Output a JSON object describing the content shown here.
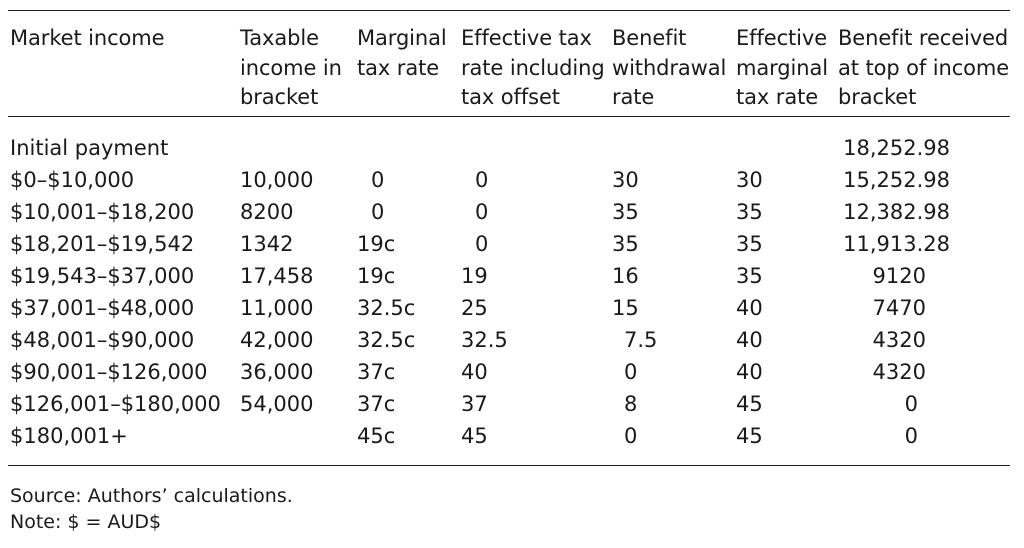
{
  "table": {
    "headers": [
      [
        "Market income"
      ],
      [
        "Taxable",
        "income in",
        "bracket"
      ],
      [
        "Marginal",
        "tax rate"
      ],
      [
        "Effective tax",
        "rate including",
        "tax offset"
      ],
      [
        "Benefit",
        "withdrawal",
        "rate"
      ],
      [
        "Effective",
        "marginal",
        "tax rate"
      ],
      [
        "Benefit received",
        "at top of income",
        "bracket"
      ]
    ],
    "rows": [
      [
        "Initial payment",
        "",
        "",
        "",
        "",
        "",
        "18,252.98"
      ],
      [
        "$0–$10,000",
        "10,000",
        "0",
        "0",
        "30",
        "30",
        "15,252.98"
      ],
      [
        "$10,001–$18,200",
        "8200",
        "0",
        "0",
        "35",
        "35",
        "12,382.98"
      ],
      [
        "$18,201–$19,542",
        "1342",
        "19c",
        "0",
        "35",
        "35",
        "11,913.28"
      ],
      [
        "$19,543–$37,000",
        "17,458",
        "19c",
        "19",
        "16",
        "35",
        "9120"
      ],
      [
        "$37,001–$48,000",
        "11,000",
        "32.5c",
        "25",
        "15",
        "40",
        "7470"
      ],
      [
        "$48,001–$90,000",
        "42,000",
        "32.5c",
        "32.5",
        "7.5",
        "40",
        "4320"
      ],
      [
        "$90,001–$126,000",
        "36,000",
        "37c",
        "40",
        "0",
        "40",
        "4320"
      ],
      [
        "$126,001–$180,000",
        "54,000",
        "37c",
        "37",
        "8",
        "45",
        "0"
      ],
      [
        "$180,001+",
        "",
        "45c",
        "45",
        "0",
        "45",
        "0"
      ]
    ]
  },
  "notes": {
    "source": "Source: Authors’ calculations.",
    "note": "Note: $ = AUD$"
  }
}
